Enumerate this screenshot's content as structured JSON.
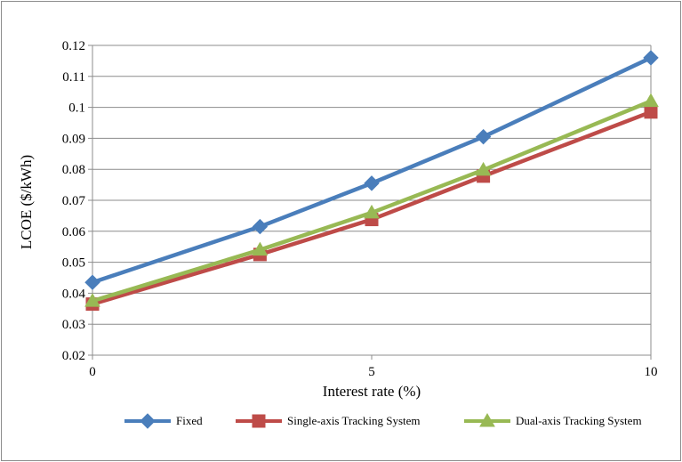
{
  "chart_data": {
    "type": "line",
    "title": "",
    "xlabel": "Interest rate (%)",
    "ylabel": "LCOE ($/kWh)",
    "xlim": [
      0,
      10
    ],
    "ylim": [
      0.02,
      0.12
    ],
    "x_ticks": [
      "0",
      "5",
      "10"
    ],
    "y_ticks": [
      "0.02",
      "0.03",
      "0.04",
      "0.05",
      "0.06",
      "0.07",
      "0.08",
      "0.09",
      "0.1",
      "0.11",
      "0.12"
    ],
    "grid": true,
    "legend_position": "bottom",
    "x": [
      0,
      3,
      5,
      7,
      10
    ],
    "series": [
      {
        "name": "Fixed",
        "marker": "diamond",
        "color": "#4a7ebb",
        "values": [
          0.0435,
          0.0615,
          0.0755,
          0.0905,
          0.116
        ]
      },
      {
        "name": "Single-axis Tracking System",
        "marker": "square",
        "color": "#be4b48",
        "values": [
          0.0365,
          0.0525,
          0.0638,
          0.0778,
          0.0985
        ]
      },
      {
        "name": "Dual-axis Tracking System",
        "marker": "triangle",
        "color": "#98b954",
        "values": [
          0.0375,
          0.054,
          0.066,
          0.0798,
          0.102
        ]
      }
    ]
  }
}
